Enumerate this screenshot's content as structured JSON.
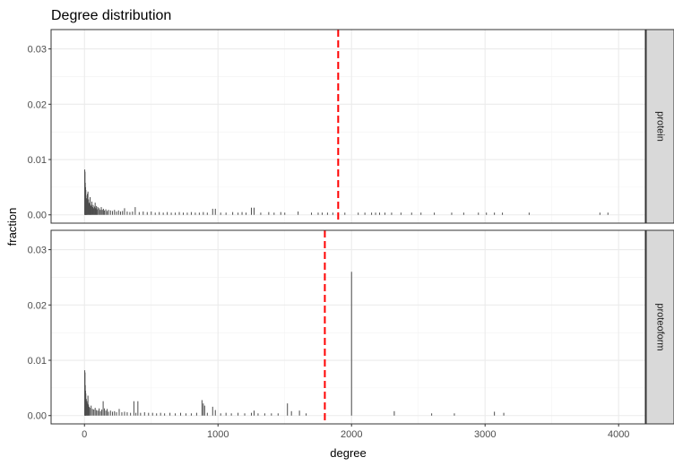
{
  "chart_data": {
    "type": "bar",
    "title": "Degree distribution",
    "xlabel": "degree",
    "ylabel": "fraction",
    "xlim": [
      -250,
      4200
    ],
    "ylim": [
      -0.0015,
      0.0335
    ],
    "x_ticks": [
      0,
      1000,
      2000,
      3000,
      4000
    ],
    "x_tick_labels": [
      "0",
      "1000",
      "2000",
      "3000",
      "4000"
    ],
    "y_ticks": [
      0.0,
      0.01,
      0.02,
      0.03
    ],
    "y_tick_labels": [
      "0.00",
      "0.01",
      "0.02",
      "0.03"
    ],
    "grid": true,
    "theme": "light (white background, grey gridlines, black panel border)",
    "facet_strip_fill": "#d9d9d9",
    "bar_color": "#4d4d4d",
    "mean_line_color": "#ff0000",
    "panels": [
      {
        "strip_label": "protein",
        "mean_line_x": 1900,
        "bars": [
          [
            2,
            0.0082
          ],
          [
            4,
            0.0078
          ],
          [
            6,
            0.0058
          ],
          [
            8,
            0.005
          ],
          [
            10,
            0.0045
          ],
          [
            12,
            0.0035
          ],
          [
            15,
            0.003
          ],
          [
            18,
            0.0026
          ],
          [
            22,
            0.0038
          ],
          [
            26,
            0.0042
          ],
          [
            30,
            0.0028
          ],
          [
            34,
            0.0022
          ],
          [
            38,
            0.002
          ],
          [
            42,
            0.0032
          ],
          [
            46,
            0.0018
          ],
          [
            50,
            0.0016
          ],
          [
            55,
            0.0024
          ],
          [
            60,
            0.0014
          ],
          [
            65,
            0.0018
          ],
          [
            70,
            0.0012
          ],
          [
            75,
            0.0015
          ],
          [
            80,
            0.0022
          ],
          [
            85,
            0.0012
          ],
          [
            90,
            0.0016
          ],
          [
            95,
            0.001
          ],
          [
            100,
            0.0014
          ],
          [
            110,
            0.0012
          ],
          [
            118,
            0.0009
          ],
          [
            126,
            0.0014
          ],
          [
            134,
            0.0009
          ],
          [
            142,
            0.0011
          ],
          [
            150,
            0.0008
          ],
          [
            160,
            0.001
          ],
          [
            170,
            0.0007
          ],
          [
            180,
            0.0009
          ],
          [
            195,
            0.0008
          ],
          [
            210,
            0.0007
          ],
          [
            225,
            0.0009
          ],
          [
            240,
            0.0006
          ],
          [
            255,
            0.0008
          ],
          [
            270,
            0.0006
          ],
          [
            285,
            0.0007
          ],
          [
            300,
            0.0012
          ],
          [
            320,
            0.0006
          ],
          [
            340,
            0.0005
          ],
          [
            360,
            0.0006
          ],
          [
            380,
            0.0014
          ],
          [
            410,
            0.0005
          ],
          [
            440,
            0.0006
          ],
          [
            470,
            0.0005
          ],
          [
            500,
            0.0006
          ],
          [
            530,
            0.0004
          ],
          [
            560,
            0.0005
          ],
          [
            590,
            0.0004
          ],
          [
            620,
            0.0005
          ],
          [
            650,
            0.0004
          ],
          [
            680,
            0.0004
          ],
          [
            710,
            0.0005
          ],
          [
            740,
            0.0004
          ],
          [
            770,
            0.0004
          ],
          [
            800,
            0.0005
          ],
          [
            830,
            0.0004
          ],
          [
            860,
            0.0004
          ],
          [
            890,
            0.0005
          ],
          [
            920,
            0.0004
          ],
          [
            960,
            0.0011
          ],
          [
            980,
            0.0011
          ],
          [
            1020,
            0.0004
          ],
          [
            1060,
            0.0004
          ],
          [
            1110,
            0.0005
          ],
          [
            1150,
            0.0004
          ],
          [
            1180,
            0.0005
          ],
          [
            1210,
            0.0004
          ],
          [
            1250,
            0.0013
          ],
          [
            1270,
            0.0013
          ],
          [
            1320,
            0.0004
          ],
          [
            1380,
            0.0005
          ],
          [
            1420,
            0.0004
          ],
          [
            1470,
            0.0005
          ],
          [
            1500,
            0.0004
          ],
          [
            1600,
            0.0006
          ],
          [
            1700,
            0.0004
          ],
          [
            1750,
            0.0004
          ],
          [
            1780,
            0.0004
          ],
          [
            1820,
            0.0004
          ],
          [
            1860,
            0.0004
          ],
          [
            1950,
            0.0004
          ],
          [
            2050,
            0.0004
          ],
          [
            2100,
            0.0004
          ],
          [
            2150,
            0.0004
          ],
          [
            2180,
            0.0004
          ],
          [
            2210,
            0.0004
          ],
          [
            2250,
            0.0004
          ],
          [
            2300,
            0.0004
          ],
          [
            2370,
            0.0004
          ],
          [
            2450,
            0.0004
          ],
          [
            2520,
            0.0004
          ],
          [
            2620,
            0.0004
          ],
          [
            2750,
            0.0004
          ],
          [
            2840,
            0.0004
          ],
          [
            2950,
            0.0004
          ],
          [
            3010,
            0.0004
          ],
          [
            3070,
            0.0004
          ],
          [
            3130,
            0.0004
          ],
          [
            3330,
            0.0004
          ],
          [
            3860,
            0.0004
          ],
          [
            3920,
            0.0004
          ]
        ]
      },
      {
        "strip_label": "proteoform",
        "mean_line_x": 1800,
        "bars": [
          [
            2,
            0.0082
          ],
          [
            4,
            0.0078
          ],
          [
            6,
            0.0055
          ],
          [
            8,
            0.0045
          ],
          [
            10,
            0.004
          ],
          [
            14,
            0.003
          ],
          [
            18,
            0.0026
          ],
          [
            22,
            0.0022
          ],
          [
            26,
            0.0036
          ],
          [
            30,
            0.002
          ],
          [
            35,
            0.0016
          ],
          [
            40,
            0.0014
          ],
          [
            50,
            0.0018
          ],
          [
            60,
            0.0012
          ],
          [
            70,
            0.0011
          ],
          [
            80,
            0.0014
          ],
          [
            90,
            0.001
          ],
          [
            100,
            0.0009
          ],
          [
            110,
            0.0013
          ],
          [
            120,
            0.0008
          ],
          [
            130,
            0.0011
          ],
          [
            140,
            0.0026
          ],
          [
            150,
            0.0013
          ],
          [
            160,
            0.0009
          ],
          [
            170,
            0.0012
          ],
          [
            180,
            0.0007
          ],
          [
            195,
            0.0009
          ],
          [
            210,
            0.0007
          ],
          [
            225,
            0.0008
          ],
          [
            240,
            0.0006
          ],
          [
            260,
            0.0012
          ],
          [
            280,
            0.0006
          ],
          [
            300,
            0.0007
          ],
          [
            320,
            0.0006
          ],
          [
            345,
            0.0005
          ],
          [
            370,
            0.0026
          ],
          [
            385,
            0.0005
          ],
          [
            400,
            0.0026
          ],
          [
            420,
            0.0005
          ],
          [
            450,
            0.0006
          ],
          [
            480,
            0.0005
          ],
          [
            510,
            0.0005
          ],
          [
            540,
            0.0004
          ],
          [
            570,
            0.0005
          ],
          [
            600,
            0.0004
          ],
          [
            640,
            0.0005
          ],
          [
            680,
            0.0004
          ],
          [
            720,
            0.0005
          ],
          [
            760,
            0.0004
          ],
          [
            800,
            0.0004
          ],
          [
            840,
            0.0005
          ],
          [
            880,
            0.0028
          ],
          [
            890,
            0.0022
          ],
          [
            900,
            0.0018
          ],
          [
            920,
            0.0005
          ],
          [
            960,
            0.0016
          ],
          [
            980,
            0.001
          ],
          [
            1020,
            0.0004
          ],
          [
            1060,
            0.0005
          ],
          [
            1100,
            0.0004
          ],
          [
            1150,
            0.0005
          ],
          [
            1200,
            0.0004
          ],
          [
            1250,
            0.0005
          ],
          [
            1270,
            0.0009
          ],
          [
            1300,
            0.0004
          ],
          [
            1350,
            0.0004
          ],
          [
            1400,
            0.0004
          ],
          [
            1450,
            0.0004
          ],
          [
            1520,
            0.0022
          ],
          [
            1550,
            0.0008
          ],
          [
            1610,
            0.0009
          ],
          [
            1660,
            0.0004
          ],
          [
            2000,
            0.026
          ],
          [
            2320,
            0.0008
          ],
          [
            2600,
            0.0004
          ],
          [
            2770,
            0.0004
          ],
          [
            3070,
            0.0007
          ],
          [
            3140,
            0.0005
          ]
        ]
      }
    ]
  }
}
